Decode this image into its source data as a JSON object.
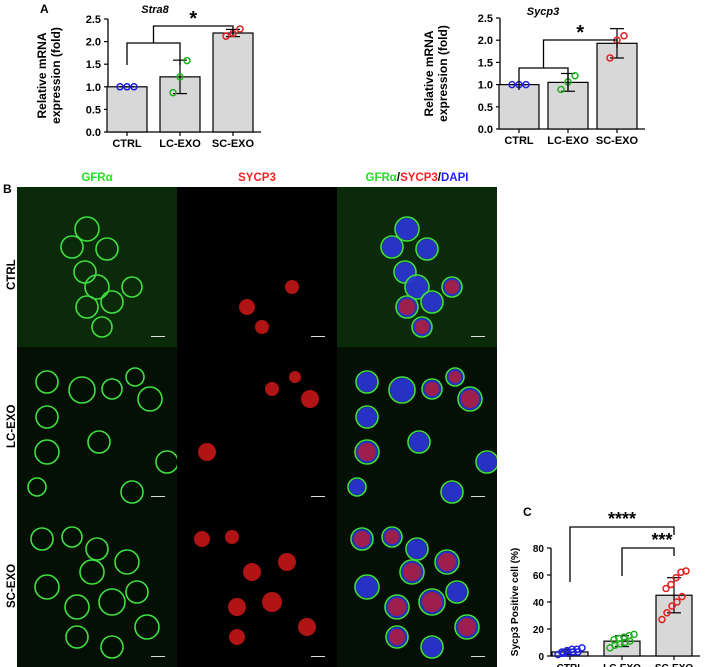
{
  "panels": {
    "a": "A",
    "b": "B",
    "c": "C"
  },
  "microscopy": {
    "columns": [
      {
        "parts": [
          {
            "text": "GFRα",
            "color": "#22e022"
          }
        ]
      },
      {
        "parts": [
          {
            "text": "SYCP3",
            "color": "#ff2020"
          }
        ]
      },
      {
        "parts": [
          {
            "text": "GFRα",
            "color": "#22e022"
          },
          {
            "text": "/",
            "color": "#000000"
          },
          {
            "text": "SYCP3",
            "color": "#ff2020"
          },
          {
            "text": "/",
            "color": "#000000"
          },
          {
            "text": "DAPI",
            "color": "#2020ff"
          }
        ]
      }
    ],
    "rows": [
      "CTRL",
      "LC-EXO",
      "SC-EXO"
    ]
  },
  "chart_data": [
    {
      "type": "bar",
      "panel": "A",
      "title": "Stra8",
      "ylabel": "Relative mRNA expression (fold)",
      "ylim": [
        0,
        2.5
      ],
      "yticks": [
        "0.0",
        "0.5",
        "1.0",
        "1.5",
        "2.0",
        "2.5"
      ],
      "categories": [
        "CTRL",
        "LC-EXO",
        "SC-EXO"
      ],
      "values": [
        1.0,
        1.22,
        2.19
      ],
      "errors": [
        0.0,
        0.37,
        0.08
      ],
      "points": [
        [
          1.0,
          1.0,
          1.0
        ],
        [
          0.87,
          1.22,
          1.58
        ],
        [
          2.12,
          2.18,
          2.28
        ]
      ],
      "point_colors": [
        "#2020e0",
        "#20b020",
        "#e02020"
      ],
      "bar_color": "#d8d8d8",
      "significance": [
        {
          "label": "*",
          "group": [
            0,
            1
          ],
          "vs": 2
        }
      ]
    },
    {
      "type": "bar",
      "panel": "A",
      "title": "Sycp3",
      "ylabel": "Relative mRNA expression (fold)",
      "ylim": [
        0,
        2.5
      ],
      "yticks": [
        "0.0",
        "0.5",
        "1.0",
        "1.5",
        "2.0",
        "2.5"
      ],
      "categories": [
        "CTRL",
        "LC-EXO",
        "SC-EXO"
      ],
      "values": [
        1.0,
        1.05,
        1.93
      ],
      "errors": [
        0.0,
        0.2,
        0.33
      ],
      "points": [
        [
          1.0,
          1.0,
          1.0
        ],
        [
          0.89,
          1.06,
          1.2
        ],
        [
          1.6,
          2.0,
          2.1
        ]
      ],
      "point_colors": [
        "#2020e0",
        "#20b020",
        "#e02020"
      ],
      "bar_color": "#d8d8d8",
      "significance": [
        {
          "label": "*",
          "group": [
            0,
            1
          ],
          "vs": 2
        }
      ]
    },
    {
      "type": "bar",
      "panel": "C",
      "title": "",
      "ylabel": "Sycp3 Positive cell (%)",
      "ylim": [
        0,
        80
      ],
      "yticks": [
        "0",
        "20",
        "40",
        "60",
        "80"
      ],
      "categories": [
        "CTRL",
        "LC-EXO",
        "SC-EXO"
      ],
      "values": [
        3,
        11,
        45
      ],
      "errors": [
        2,
        4,
        13
      ],
      "points": [
        [
          1,
          2,
          2,
          3,
          3,
          3,
          4,
          5,
          5,
          6
        ],
        [
          6,
          8,
          9,
          10,
          11,
          12,
          13,
          14,
          15,
          16
        ],
        [
          27,
          32,
          37,
          40,
          44,
          50,
          53,
          58,
          62,
          63
        ]
      ],
      "point_colors": [
        "#2020e0",
        "#20b020",
        "#e02020"
      ],
      "bar_color": "#d8d8d8",
      "significance": [
        {
          "label": "****",
          "from": 0,
          "to": 2
        },
        {
          "label": "***",
          "from": 1,
          "to": 2
        }
      ]
    }
  ]
}
